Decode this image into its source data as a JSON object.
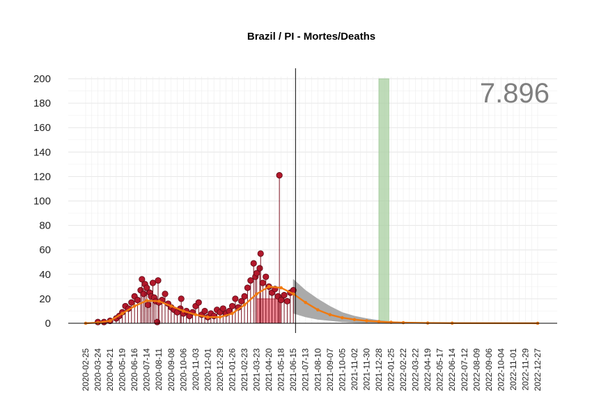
{
  "chart_data": {
    "type": "line",
    "title": "Brazil / PI - Mortes/Deaths",
    "xlabel": "",
    "ylabel": "",
    "ylim": [
      0,
      200
    ],
    "yticks": [
      0,
      20,
      40,
      60,
      80,
      100,
      120,
      140,
      160,
      180,
      200
    ],
    "xlim": [
      "2020-02-25",
      "2022-12-27"
    ],
    "xticks": [
      "2020-02-25",
      "2020-03-24",
      "2020-04-21",
      "2020-05-19",
      "2020-06-16",
      "2020-07-14",
      "2020-08-11",
      "2020-09-08",
      "2020-10-06",
      "2020-11-03",
      "2020-12-01",
      "2020-12-29",
      "2021-01-26",
      "2021-02-23",
      "2021-03-23",
      "2021-04-20",
      "2021-05-18",
      "2021-06-15",
      "2021-07-13",
      "2021-08-10",
      "2021-09-07",
      "2021-10-05",
      "2021-11-02",
      "2021-11-30",
      "2021-12-28",
      "2022-01-25",
      "2022-02-22",
      "2022-03-22",
      "2022-04-19",
      "2022-05-17",
      "2022-06-14",
      "2022-07-12",
      "2022-08-09",
      "2022-09-06",
      "2022-10-04",
      "2022-11-01",
      "2022-11-29",
      "2022-12-27"
    ],
    "grid": true,
    "total_label": "7.896",
    "today_line": "2021-06-20",
    "highlight_range": [
      "2021-12-28",
      "2022-01-20"
    ],
    "recent_window": [
      "2021-03-23",
      "2021-05-18"
    ],
    "recent_window_level": 20,
    "series": [
      {
        "kind": "observed_points",
        "color": "#b2182b",
        "points": [
          [
            "2020-03-24",
            1
          ],
          [
            "2020-04-07",
            1
          ],
          [
            "2020-04-21",
            2
          ],
          [
            "2020-05-05",
            4
          ],
          [
            "2020-05-12",
            6
          ],
          [
            "2020-05-19",
            9
          ],
          [
            "2020-05-26",
            14
          ],
          [
            "2020-06-02",
            12
          ],
          [
            "2020-06-09",
            17
          ],
          [
            "2020-06-16",
            22
          ],
          [
            "2020-06-23",
            19
          ],
          [
            "2020-06-30",
            27
          ],
          [
            "2020-07-03",
            36
          ],
          [
            "2020-07-07",
            24
          ],
          [
            "2020-07-10",
            32
          ],
          [
            "2020-07-14",
            29
          ],
          [
            "2020-07-17",
            15
          ],
          [
            "2020-07-21",
            25
          ],
          [
            "2020-07-24",
            22
          ],
          [
            "2020-07-28",
            33
          ],
          [
            "2020-07-31",
            21
          ],
          [
            "2020-08-04",
            18
          ],
          [
            "2020-08-07",
            1
          ],
          [
            "2020-08-09",
            35
          ],
          [
            "2020-08-11",
            17
          ],
          [
            "2020-08-18",
            19
          ],
          [
            "2020-08-25",
            24
          ],
          [
            "2020-09-01",
            16
          ],
          [
            "2020-09-08",
            13
          ],
          [
            "2020-09-15",
            11
          ],
          [
            "2020-09-22",
            9
          ],
          [
            "2020-09-29",
            12
          ],
          [
            "2020-10-01",
            20
          ],
          [
            "2020-10-06",
            8
          ],
          [
            "2020-10-13",
            10
          ],
          [
            "2020-10-20",
            6
          ],
          [
            "2020-10-27",
            9
          ],
          [
            "2020-11-03",
            14
          ],
          [
            "2020-11-10",
            17
          ],
          [
            "2020-11-17",
            7
          ],
          [
            "2020-11-24",
            10
          ],
          [
            "2020-12-01",
            5
          ],
          [
            "2020-12-08",
            8
          ],
          [
            "2020-12-15",
            6
          ],
          [
            "2020-12-22",
            11
          ],
          [
            "2020-12-29",
            9
          ],
          [
            "2021-01-05",
            12
          ],
          [
            "2021-01-12",
            8
          ],
          [
            "2021-01-19",
            10
          ],
          [
            "2021-01-26",
            14
          ],
          [
            "2021-02-02",
            20
          ],
          [
            "2021-02-09",
            13
          ],
          [
            "2021-02-16",
            18
          ],
          [
            "2021-02-23",
            22
          ],
          [
            "2021-03-02",
            29
          ],
          [
            "2021-03-09",
            35
          ],
          [
            "2021-03-16",
            49
          ],
          [
            "2021-03-20",
            38
          ],
          [
            "2021-03-23",
            41
          ],
          [
            "2021-03-30",
            45
          ],
          [
            "2021-04-01",
            57
          ],
          [
            "2021-04-06",
            33
          ],
          [
            "2021-04-13",
            38
          ],
          [
            "2021-04-20",
            30
          ],
          [
            "2021-04-27",
            25
          ],
          [
            "2021-05-04",
            28
          ],
          [
            "2021-05-11",
            22
          ],
          [
            "2021-05-14",
            121
          ],
          [
            "2021-05-18",
            19
          ],
          [
            "2021-05-25",
            23
          ],
          [
            "2021-06-01",
            18
          ],
          [
            "2021-06-08",
            25
          ],
          [
            "2021-06-15",
            27
          ]
        ]
      },
      {
        "kind": "trend",
        "color": "#f07a10",
        "points": [
          [
            "2020-02-25",
            0
          ],
          [
            "2020-03-24",
            0.5
          ],
          [
            "2020-04-21",
            2
          ],
          [
            "2020-05-19",
            8
          ],
          [
            "2020-06-16",
            14
          ],
          [
            "2020-07-14",
            18.5
          ],
          [
            "2020-08-11",
            18
          ],
          [
            "2020-09-08",
            14
          ],
          [
            "2020-10-06",
            10
          ],
          [
            "2020-11-03",
            7
          ],
          [
            "2020-12-01",
            5
          ],
          [
            "2020-12-29",
            5
          ],
          [
            "2021-01-26",
            8
          ],
          [
            "2021-02-23",
            15
          ],
          [
            "2021-03-23",
            24
          ],
          [
            "2021-04-20",
            30
          ],
          [
            "2021-05-18",
            29
          ],
          [
            "2021-06-15",
            24
          ],
          [
            "2021-07-13",
            17
          ],
          [
            "2021-08-10",
            11
          ],
          [
            "2021-09-07",
            7
          ],
          [
            "2021-10-05",
            4.5
          ],
          [
            "2021-11-02",
            3
          ],
          [
            "2021-11-30",
            2
          ],
          [
            "2021-12-28",
            1.3
          ],
          [
            "2022-01-25",
            0.8
          ],
          [
            "2022-02-22",
            0.5
          ],
          [
            "2022-04-19",
            0.2
          ],
          [
            "2022-06-14",
            0.1
          ],
          [
            "2022-12-27",
            0
          ]
        ]
      },
      {
        "kind": "projection_band",
        "color": "#aaaaaa",
        "points": [
          [
            "2021-06-15",
            8,
            36
          ],
          [
            "2021-07-13",
            5,
            27
          ],
          [
            "2021-08-10",
            3,
            20
          ],
          [
            "2021-09-07",
            2,
            14
          ],
          [
            "2021-10-05",
            1,
            9
          ],
          [
            "2021-11-02",
            0.5,
            6
          ],
          [
            "2021-11-30",
            0.3,
            4
          ],
          [
            "2021-12-28",
            0.1,
            2.5
          ],
          [
            "2022-01-25",
            0,
            1.6
          ],
          [
            "2022-02-22",
            0,
            1
          ],
          [
            "2022-04-19",
            0,
            0.4
          ],
          [
            "2022-06-14",
            0,
            0.1
          ]
        ]
      }
    ]
  }
}
